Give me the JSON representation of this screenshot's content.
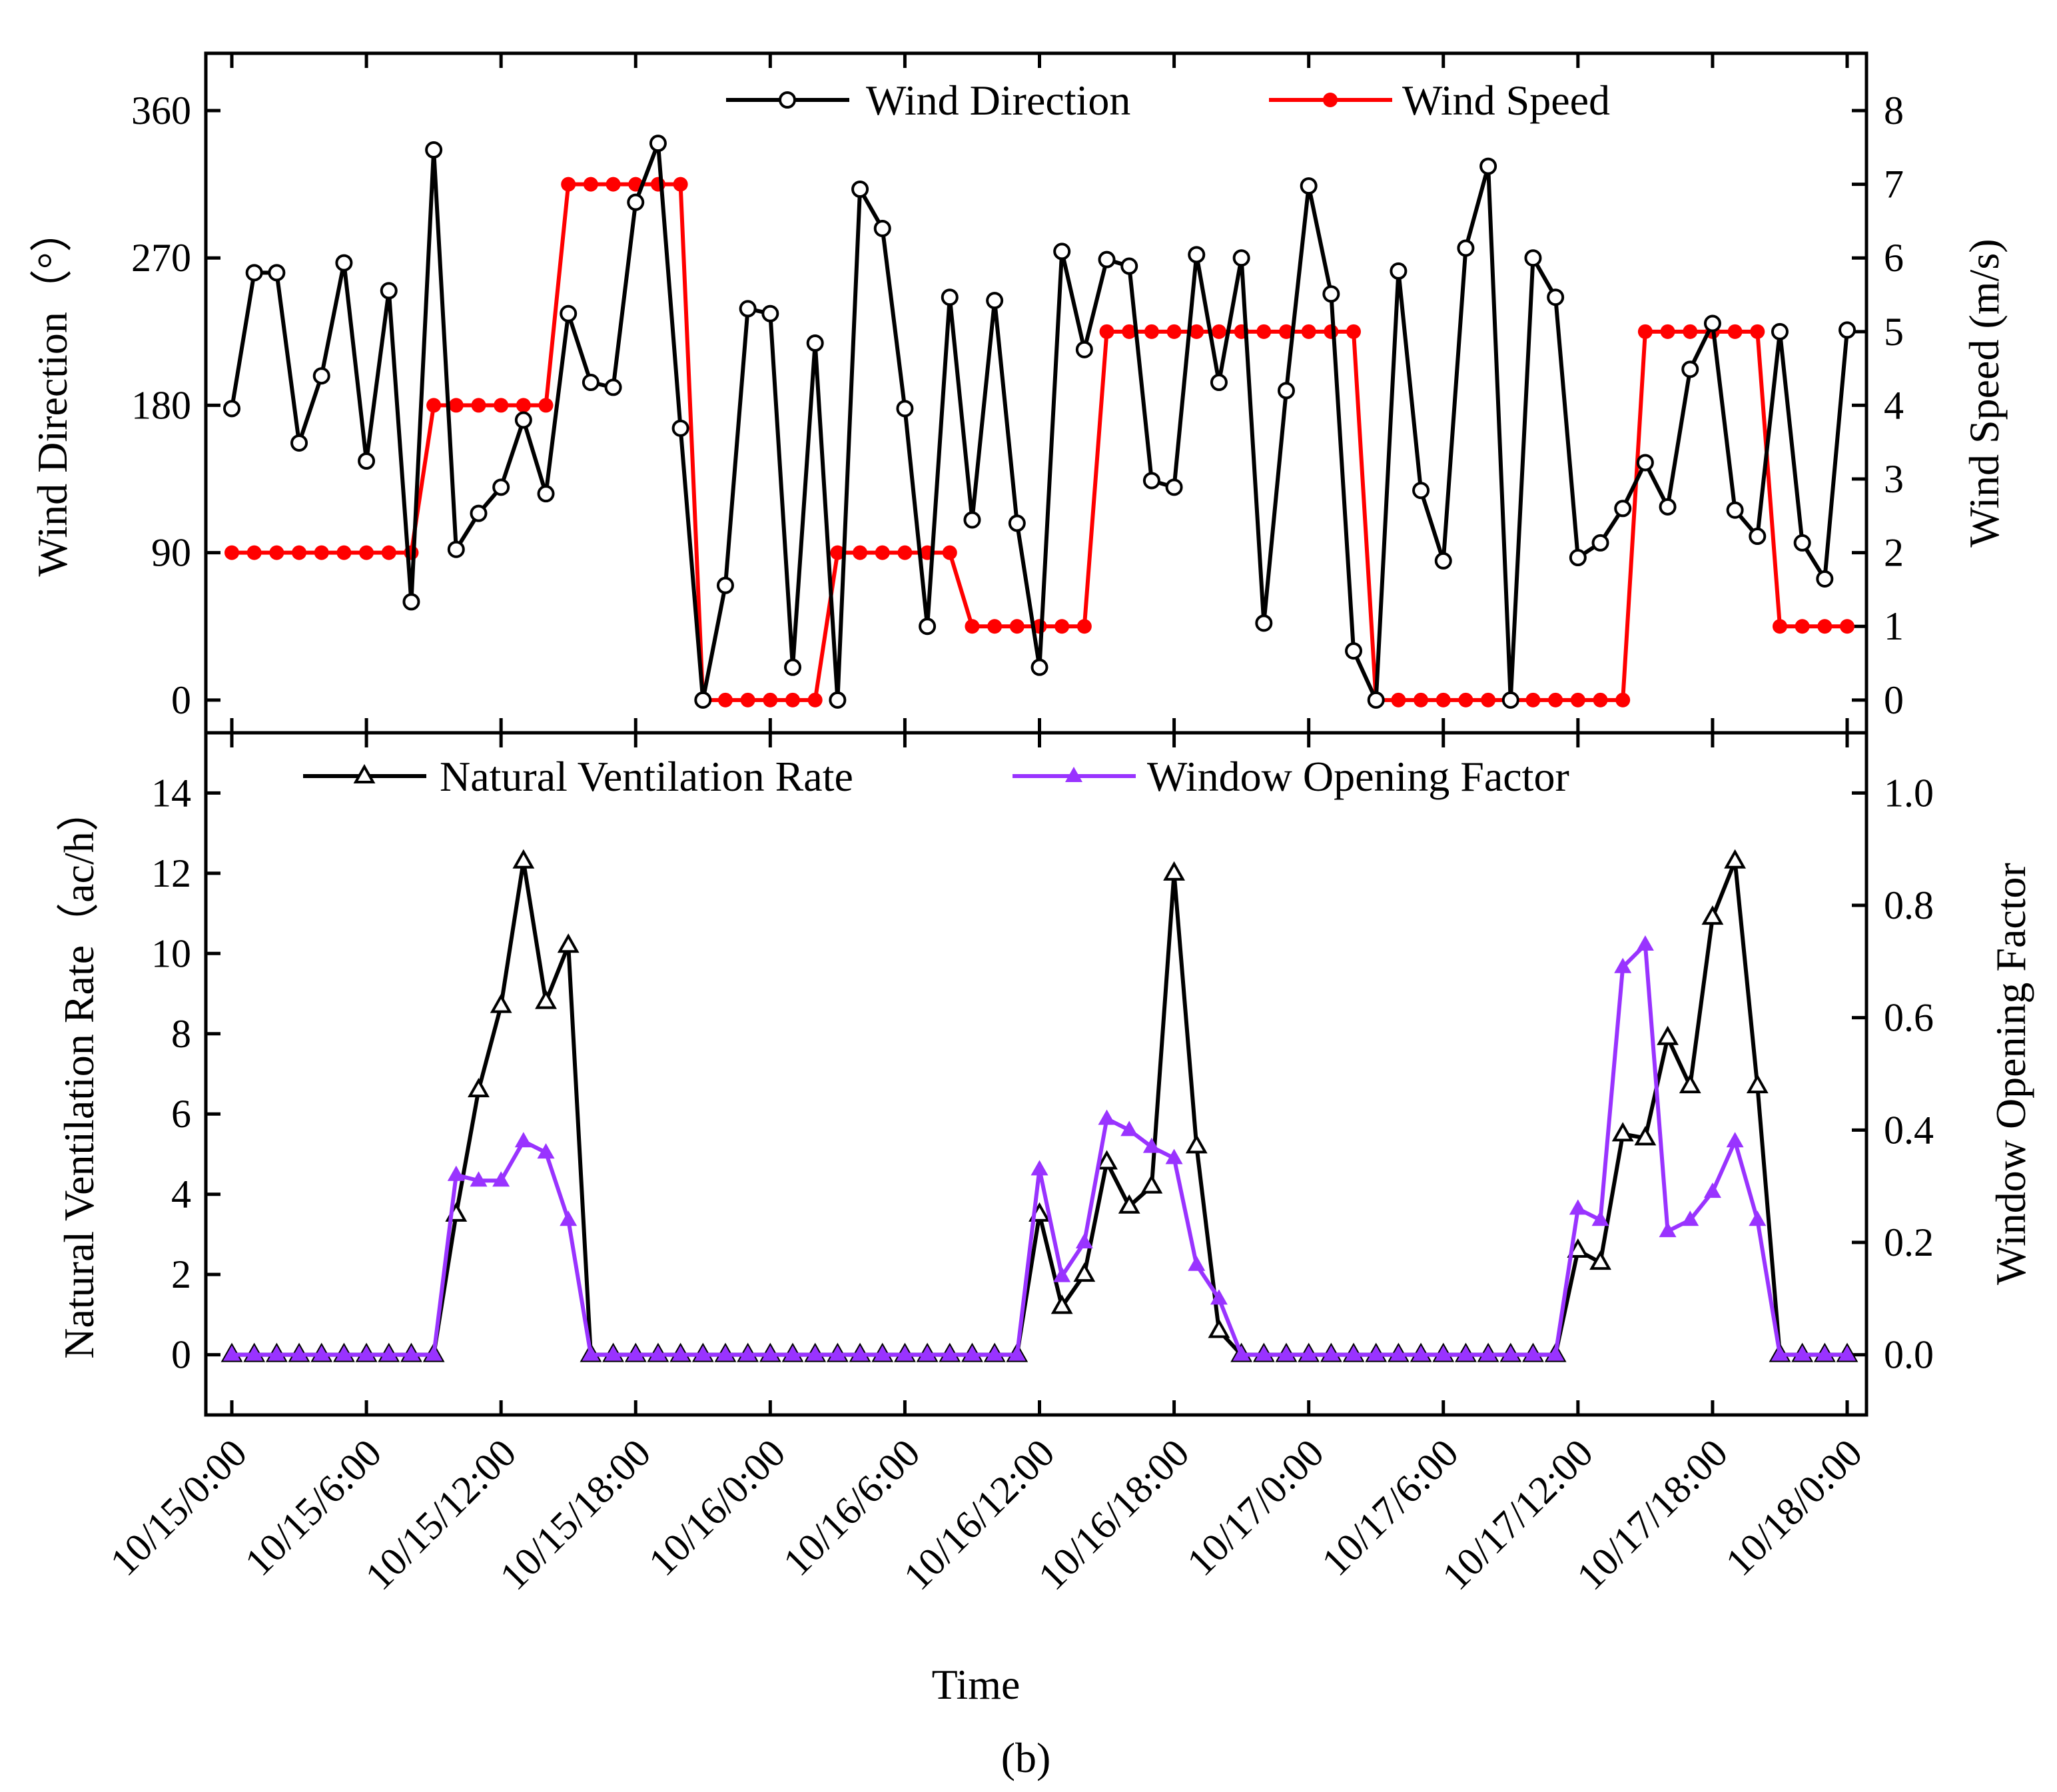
{
  "figure_label": "(b)",
  "colors": {
    "wind_direction": "#000000",
    "wind_speed": "#ff0000",
    "ventilation_rate": "#000000",
    "window_opening": "#9933ff"
  },
  "chart_data": [
    {
      "type": "line",
      "panel": "top",
      "xlabel": "Time",
      "x_range_hours": [
        0,
        72
      ],
      "x_ticks_hours": [
        0,
        6,
        12,
        18,
        24,
        30,
        36,
        42,
        48,
        54,
        60,
        66,
        72
      ],
      "x_tick_labels": [
        "10/15/0:00",
        "10/15/6:00",
        "10/15/12:00",
        "10/15/18:00",
        "10/16/0:00",
        "10/16/6:00",
        "10/16/12:00",
        "10/16/18:00",
        "10/17/0:00",
        "10/17/6:00",
        "10/17/12:00",
        "10/17/18:00",
        "10/18/0:00"
      ],
      "y_left": {
        "label": "Wind Direction（°）",
        "range": [
          -20,
          395
        ],
        "ticks": [
          0,
          90,
          180,
          270,
          360
        ]
      },
      "y_right": {
        "label": "Wind Speed (m/s)",
        "range": [
          -0.4444,
          8.7778
        ],
        "ticks": [
          0,
          1,
          2,
          3,
          4,
          5,
          6,
          7,
          8
        ]
      },
      "legend": [
        "Wind Direction",
        "Wind Speed"
      ],
      "legend_position": "top",
      "series": [
        {
          "name": "Wind Direction",
          "axis": "left",
          "marker": "open-circle",
          "values": [
            178,
            261,
            261,
            157,
            198,
            267,
            146,
            250,
            60,
            336,
            92,
            114,
            130,
            171,
            126,
            236,
            194,
            191,
            304,
            340,
            166,
            0,
            70,
            239,
            236,
            20,
            218,
            0,
            312,
            288,
            178,
            45,
            246,
            110,
            244,
            108,
            20,
            274,
            214,
            269,
            265,
            134,
            130,
            272,
            194,
            270,
            47,
            189,
            314,
            248,
            30,
            0,
            262,
            128,
            85,
            276,
            326,
            0,
            270,
            246,
            87,
            96,
            117,
            145,
            118,
            202,
            230,
            116,
            100,
            225,
            96,
            74,
            226
          ]
        },
        {
          "name": "Wind Speed",
          "axis": "right",
          "marker": "filled-circle",
          "values": [
            2,
            2,
            2,
            2,
            2,
            2,
            2,
            2,
            2,
            4,
            4,
            4,
            4,
            4,
            4,
            7,
            7,
            7,
            7,
            7,
            7,
            0,
            0,
            0,
            0,
            0,
            0,
            2,
            2,
            2,
            2,
            2,
            2,
            1,
            1,
            1,
            1,
            1,
            1,
            5,
            5,
            5,
            5,
            5,
            5,
            5,
            5,
            5,
            5,
            5,
            5,
            0,
            0,
            0,
            0,
            0,
            0,
            0,
            0,
            0,
            0,
            0,
            0,
            5,
            5,
            5,
            5,
            5,
            5,
            1,
            1,
            1,
            1
          ]
        }
      ]
    },
    {
      "type": "line",
      "panel": "bottom",
      "xlabel": "Time",
      "x_range_hours": [
        0,
        72
      ],
      "y_left": {
        "label": "Natural Ventilation Rate（ac/h）",
        "range": [
          -1.5,
          15.5
        ],
        "ticks": [
          0,
          2,
          4,
          6,
          8,
          10,
          12,
          14
        ]
      },
      "y_right": {
        "label": "Window Opening Factor",
        "range": [
          -0.1071,
          1.1071
        ],
        "ticks": [
          0.0,
          0.2,
          0.4,
          0.6,
          0.8,
          1.0
        ]
      },
      "legend": [
        "Natural Ventilation Rate",
        "Window Opening Factor"
      ],
      "legend_position": "top",
      "series": [
        {
          "name": "Natural Ventilation Rate",
          "axis": "left",
          "marker": "open-triangle",
          "values": [
            0,
            0,
            0,
            0,
            0,
            0,
            0,
            0,
            0,
            0,
            3.5,
            6.6,
            8.7,
            12.3,
            8.8,
            10.2,
            0,
            0,
            0,
            0,
            0,
            0,
            0,
            0,
            0,
            0,
            0,
            0,
            0,
            0,
            0,
            0,
            0,
            0,
            0,
            0,
            3.5,
            1.2,
            2.0,
            4.8,
            3.7,
            4.2,
            12.0,
            5.2,
            0.6,
            0,
            0,
            0,
            0,
            0,
            0,
            0,
            0,
            0,
            0,
            0,
            0,
            0,
            0,
            0,
            2.6,
            2.3,
            5.5,
            5.4,
            7.9,
            6.7,
            10.9,
            12.3,
            6.7,
            0,
            0,
            0,
            0
          ]
        },
        {
          "name": "Window Opening Factor",
          "axis": "right",
          "marker": "filled-triangle",
          "values": [
            0,
            0,
            0,
            0,
            0,
            0,
            0,
            0,
            0,
            0,
            0.32,
            0.31,
            0.31,
            0.38,
            0.36,
            0.24,
            0,
            0,
            0,
            0,
            0,
            0,
            0,
            0,
            0,
            0,
            0,
            0,
            0,
            0,
            0,
            0,
            0,
            0,
            0,
            0,
            0.33,
            0.14,
            0.2,
            0.42,
            0.4,
            0.37,
            0.35,
            0.16,
            0.1,
            0,
            0,
            0,
            0,
            0,
            0,
            0,
            0,
            0,
            0,
            0,
            0,
            0,
            0,
            0,
            0.26,
            0.24,
            0.69,
            0.73,
            0.22,
            0.24,
            0.29,
            0.38,
            0.24,
            0,
            0,
            0,
            0
          ]
        }
      ]
    }
  ]
}
